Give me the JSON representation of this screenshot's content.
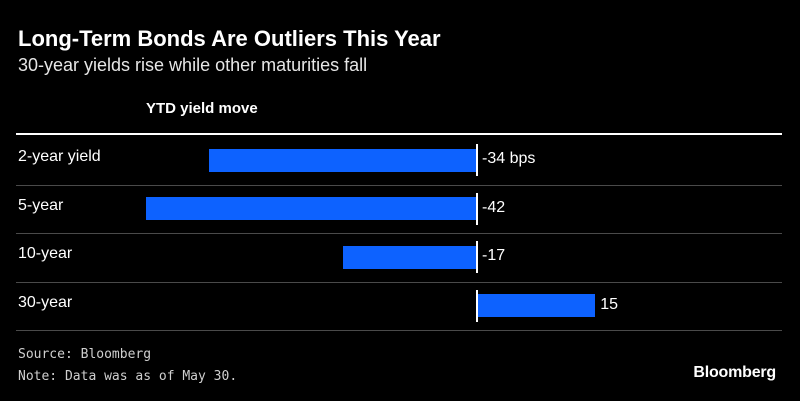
{
  "chart_data": {
    "type": "bar",
    "orientation": "horizontal",
    "title": "Long-Term Bonds Are Outliers This Year",
    "subtitle": "30-year yields rise while other maturities fall",
    "column_header": "YTD yield move",
    "categories": [
      "2-year yield",
      "5-year",
      "10-year",
      "30-year"
    ],
    "values": [
      -34,
      -42,
      -17,
      15
    ],
    "value_labels": [
      "-34 bps",
      "-42",
      "-17",
      "15"
    ],
    "bar_color": "#0d62ff",
    "xlim": [
      -42,
      15
    ],
    "grid": false,
    "legend": "none"
  },
  "footer": {
    "source": "Source: Bloomberg",
    "note": "Note: Data was as of May 30.",
    "brand": "Bloomberg"
  }
}
